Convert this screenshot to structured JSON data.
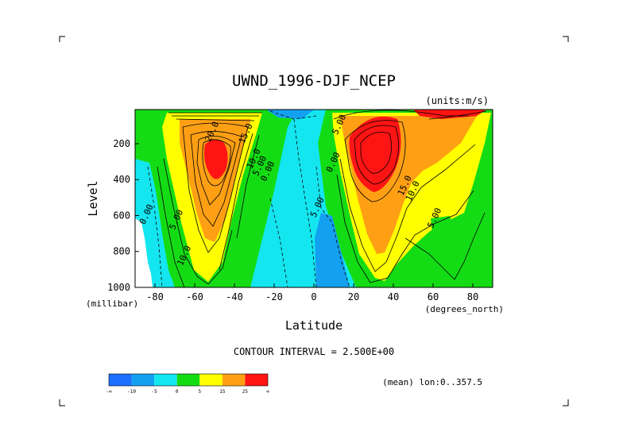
{
  "chart_data": {
    "type": "contour",
    "title": "UWND_1996-DJF_NCEP",
    "units_label": "(units:m/s)",
    "xlabel": "Latitude",
    "ylabel": "Level",
    "x_units": "(degrees_north)",
    "y_units": "(millibar)",
    "xlim": [
      -90,
      90
    ],
    "ylim": [
      1000,
      10
    ],
    "x_ticks": [
      -80,
      -60,
      -40,
      -20,
      0,
      20,
      40,
      60,
      80
    ],
    "y_ticks": [
      200,
      400,
      600,
      800,
      1000
    ],
    "contour_interval_text": "CONTOUR INTERVAL = 2.500E+00",
    "footnote": "(mean) lon:0..357.5",
    "colorbar": {
      "ticks": [
        "-∞",
        "-10",
        "-5",
        "0",
        "5",
        "15",
        "25",
        "∞"
      ],
      "colors": [
        "#1e6eff",
        "#14a0f0",
        "#14e6f0",
        "#14dc14",
        "#ffff00",
        "#ffa014",
        "#ff1414"
      ]
    },
    "contour_labels": [
      {
        "text": "20.0",
        "lat": -50,
        "lev": 140
      },
      {
        "text": "15.0",
        "lat": -33,
        "lev": 150
      },
      {
        "text": "10.0",
        "lat": -29,
        "lev": 290
      },
      {
        "text": "5.00",
        "lat": -26,
        "lev": 330
      },
      {
        "text": "0.00",
        "lat": -22,
        "lev": 360
      },
      {
        "text": "0.00",
        "lat": -83,
        "lev": 600
      },
      {
        "text": "5.00",
        "lat": -68,
        "lev": 630
      },
      {
        "text": "10.0",
        "lat": -64,
        "lev": 830
      },
      {
        "text": "5.00",
        "lat": 3,
        "lev": 560
      },
      {
        "text": "0.00",
        "lat": 11,
        "lev": 310
      },
      {
        "text": "5.00",
        "lat": 14,
        "lev": 100
      },
      {
        "text": "15.0",
        "lat": 47,
        "lev": 440
      },
      {
        "text": "10.0",
        "lat": 51,
        "lev": 470
      },
      {
        "text": "5.00",
        "lat": 62,
        "lev": 620
      }
    ]
  }
}
